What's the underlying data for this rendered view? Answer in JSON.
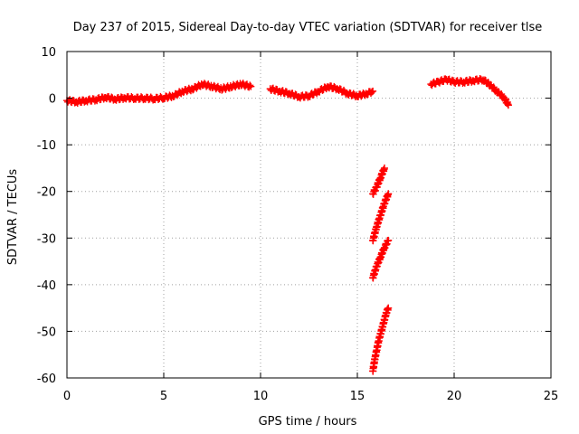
{
  "chart_data": {
    "type": "scatter",
    "title": "Day 237 of 2015, Sidereal Day-to-day VTEC variation (SDTVAR) for receiver tlse",
    "xlabel": "GPS time / hours",
    "ylabel": "SDTVAR / TECUs",
    "xlim": [
      0,
      25
    ],
    "ylim": [
      -60,
      10
    ],
    "xticks": [
      0,
      5,
      10,
      15,
      20,
      25
    ],
    "yticks": [
      10,
      0,
      -10,
      -20,
      -30,
      -40,
      -50,
      -60
    ],
    "grid": true,
    "marker": "+",
    "series_color": "#ff0000",
    "segments": [
      {
        "x": [
          0.0,
          0.5,
          1.0,
          1.5,
          2.0,
          2.5,
          3.0,
          3.5,
          4.0,
          4.5,
          5.0,
          5.5,
          6.0,
          6.5,
          7.0,
          7.5,
          8.0,
          8.5,
          9.0,
          9.5
        ],
        "y": [
          -0.5,
          -0.8,
          -0.5,
          -0.3,
          0.2,
          -0.2,
          0.1,
          0.0,
          0.0,
          -0.1,
          0.1,
          0.5,
          1.5,
          2.0,
          3.0,
          2.5,
          2.0,
          2.5,
          3.0,
          2.5
        ]
      },
      {
        "x": [
          10.5,
          11.0,
          11.5,
          12.0,
          12.5,
          13.0,
          13.5,
          14.0,
          14.5,
          15.0,
          15.5,
          15.8
        ],
        "y": [
          2.0,
          1.5,
          1.0,
          0.3,
          0.5,
          1.5,
          2.5,
          2.0,
          1.0,
          0.5,
          1.0,
          1.5
        ]
      },
      {
        "x": [
          15.8,
          16.0,
          16.2,
          16.4
        ],
        "y": [
          -20.5,
          -19.0,
          -17.0,
          -15.0
        ]
      },
      {
        "x": [
          15.8,
          16.0,
          16.2,
          16.4,
          16.6
        ],
        "y": [
          -30.5,
          -27.5,
          -25.0,
          -22.5,
          -20.5
        ]
      },
      {
        "x": [
          15.8,
          16.0,
          16.2,
          16.4,
          16.6
        ],
        "y": [
          -38.5,
          -36.0,
          -34.0,
          -32.0,
          -30.5
        ]
      },
      {
        "x": [
          15.8,
          15.9,
          16.0,
          16.1,
          16.2,
          16.3,
          16.4,
          16.5,
          16.6
        ],
        "y": [
          -58.5,
          -56.0,
          -54.0,
          -52.0,
          -50.5,
          -49.0,
          -47.5,
          -46.0,
          -45.0
        ]
      },
      {
        "x": [
          18.8,
          19.2,
          19.6,
          20.0,
          20.5,
          21.0,
          21.5,
          21.8,
          22.2,
          22.6,
          22.8
        ],
        "y": [
          3.0,
          3.5,
          4.0,
          3.5,
          3.5,
          3.8,
          4.0,
          3.0,
          1.5,
          0.0,
          -1.5
        ]
      }
    ]
  }
}
